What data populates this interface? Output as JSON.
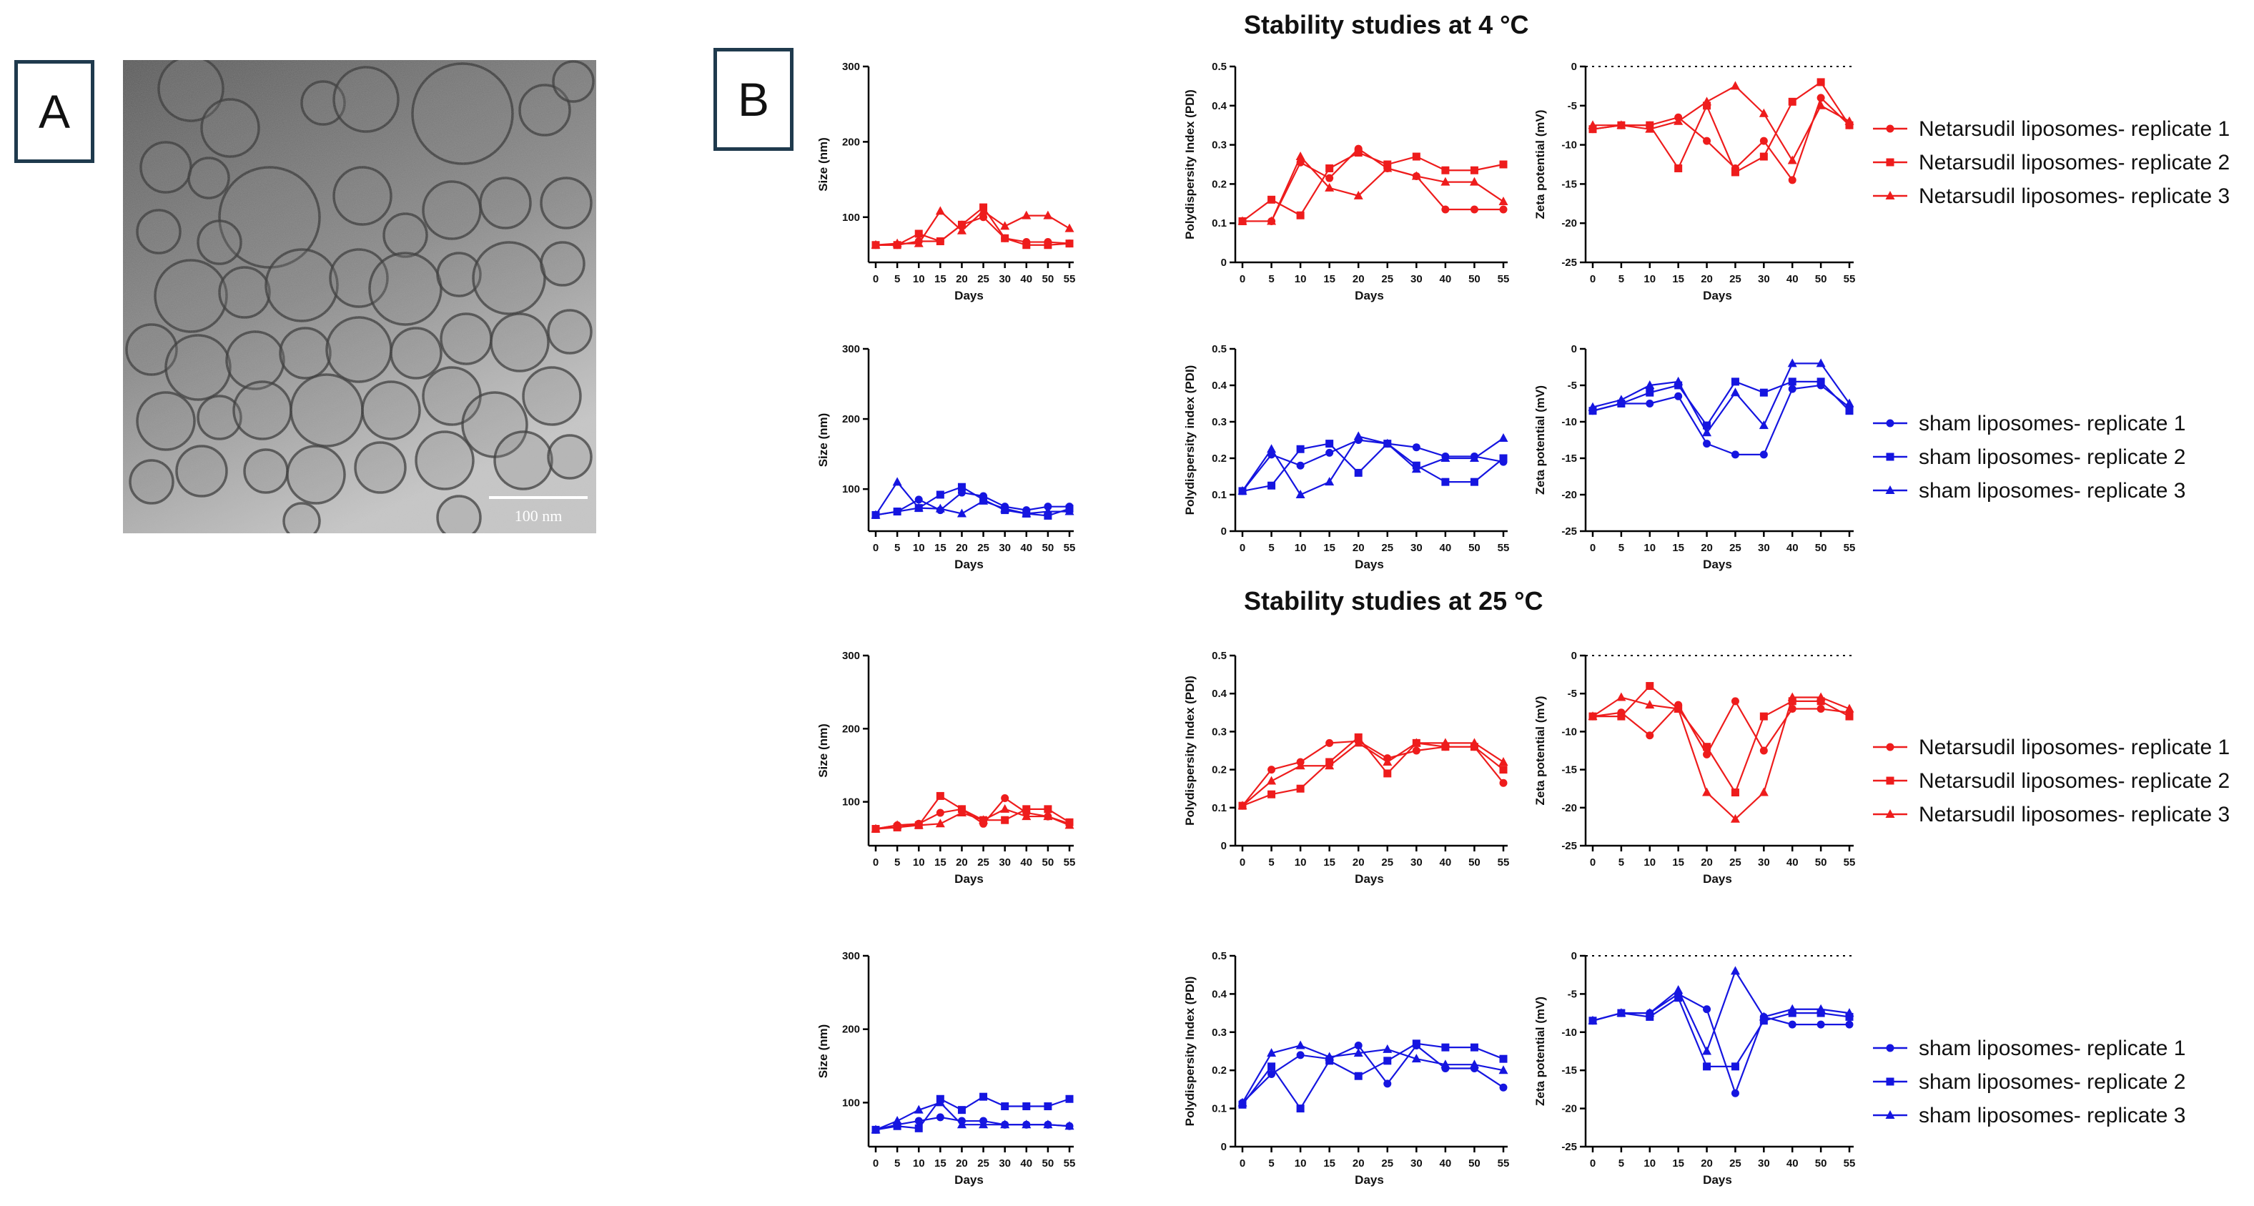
{
  "panel_labels": {
    "a": "A",
    "b": "B"
  },
  "micrograph": {
    "scale_bar_label": "100 nm"
  },
  "sections": [
    {
      "title": "Stability studies at 4 °C"
    },
    {
      "title": "Stability studies at 25 °C"
    }
  ],
  "colors": {
    "red": "#ee1c1c",
    "blue": "#1515e0"
  },
  "legends": [
    {
      "row": 0,
      "color": "red",
      "entries": [
        {
          "label": "Netarsudil liposomes- replicate 1",
          "marker": "circle"
        },
        {
          "label": "Netarsudil liposomes- replicate 2",
          "marker": "square"
        },
        {
          "label": "Netarsudil liposomes- replicate 3",
          "marker": "triangle"
        }
      ]
    },
    {
      "row": 1,
      "color": "blue",
      "entries": [
        {
          "label": "sham liposomes- replicate 1",
          "marker": "circle"
        },
        {
          "label": "sham liposomes- replicate 2",
          "marker": "square"
        },
        {
          "label": "sham liposomes- replicate 3",
          "marker": "triangle"
        }
      ]
    },
    {
      "row": 2,
      "color": "red",
      "entries": [
        {
          "label": "Netarsudil liposomes- replicate 1",
          "marker": "circle"
        },
        {
          "label": "Netarsudil liposomes- replicate 2",
          "marker": "square"
        },
        {
          "label": "Netarsudil liposomes- replicate 3",
          "marker": "triangle"
        }
      ]
    },
    {
      "row": 3,
      "color": "blue",
      "entries": [
        {
          "label": "sham liposomes- replicate 1",
          "marker": "circle"
        },
        {
          "label": "sham liposomes- replicate 2",
          "marker": "square"
        },
        {
          "label": "sham liposomes- replicate 3",
          "marker": "triangle"
        }
      ]
    }
  ],
  "chart_data": [
    {
      "type": "line",
      "row": 0,
      "col": 0,
      "color": "red",
      "ylabel": "Size (nm)",
      "xlabel": "Days",
      "x": [
        0,
        5,
        10,
        15,
        20,
        25,
        30,
        40,
        50,
        55
      ],
      "ylim": [
        40,
        300
      ],
      "yticks": [
        100,
        200,
        300
      ],
      "xticks": [
        0,
        5,
        10,
        15,
        20,
        25,
        30,
        40,
        50,
        55
      ],
      "series": [
        {
          "marker": "circle",
          "values": [
            63,
            63,
            68,
            68,
            90,
            100,
            72,
            67,
            67,
            65
          ]
        },
        {
          "marker": "square",
          "values": [
            63,
            63,
            78,
            68,
            90,
            113,
            72,
            63,
            63,
            65
          ]
        },
        {
          "marker": "triangle",
          "values": [
            63,
            65,
            65,
            108,
            82,
            108,
            88,
            102,
            102,
            85
          ]
        }
      ]
    },
    {
      "type": "line",
      "row": 0,
      "col": 1,
      "color": "red",
      "ylabel": "Polydispersity Index (PDI)",
      "xlabel": "Days",
      "x": [
        0,
        5,
        10,
        15,
        20,
        25,
        30,
        40,
        50,
        55
      ],
      "ylim": [
        0,
        0.5
      ],
      "yticks": [
        0,
        0.1,
        0.2,
        0.3,
        0.4,
        0.5
      ],
      "xticks": [
        0,
        5,
        10,
        15,
        20,
        25,
        30,
        40,
        50,
        55
      ],
      "series": [
        {
          "marker": "circle",
          "values": [
            0.105,
            0.105,
            0.255,
            0.215,
            0.29,
            0.24,
            0.22,
            0.135,
            0.135,
            0.135
          ]
        },
        {
          "marker": "square",
          "values": [
            0.105,
            0.16,
            0.12,
            0.24,
            0.28,
            0.25,
            0.27,
            0.235,
            0.235,
            0.25
          ]
        },
        {
          "marker": "triangle",
          "values": [
            0.105,
            0.105,
            0.27,
            0.19,
            0.17,
            0.24,
            0.22,
            0.205,
            0.205,
            0.155
          ]
        }
      ]
    },
    {
      "type": "line",
      "row": 0,
      "col": 2,
      "color": "red",
      "ylabel": "Zeta potential (mV)",
      "xlabel": "Days",
      "x": [
        0,
        5,
        10,
        15,
        20,
        25,
        30,
        40,
        50,
        55
      ],
      "ylim": [
        -25,
        0
      ],
      "yticks": [
        0,
        -5,
        -10,
        -15,
        -20,
        -25
      ],
      "xticks": [
        0,
        5,
        10,
        15,
        20,
        25,
        30,
        40,
        50,
        55
      ],
      "zero_line": true,
      "series": [
        {
          "marker": "circle",
          "values": [
            -8,
            -7.5,
            -7.5,
            -6.5,
            -9.5,
            -13,
            -9.5,
            -14.5,
            -4,
            -7.5
          ]
        },
        {
          "marker": "square",
          "values": [
            -8,
            -7.5,
            -7.5,
            -13,
            -5,
            -13.5,
            -11.5,
            -4.5,
            -2,
            -7.5
          ]
        },
        {
          "marker": "triangle",
          "values": [
            -7.5,
            -7.5,
            -8,
            -7,
            -4.5,
            -2.5,
            -6,
            -12,
            -5,
            -7
          ]
        }
      ]
    },
    {
      "type": "line",
      "row": 1,
      "col": 0,
      "color": "blue",
      "ylabel": "Size (nm)",
      "xlabel": "Days",
      "x": [
        0,
        5,
        10,
        15,
        20,
        25,
        30,
        40,
        50,
        55
      ],
      "ylim": [
        40,
        300
      ],
      "yticks": [
        100,
        200,
        300
      ],
      "xticks": [
        0,
        5,
        10,
        15,
        20,
        25,
        30,
        40,
        50,
        55
      ],
      "series": [
        {
          "marker": "circle",
          "values": [
            63,
            68,
            85,
            70,
            95,
            90,
            75,
            70,
            75,
            75
          ]
        },
        {
          "marker": "square",
          "values": [
            63,
            68,
            73,
            92,
            103,
            85,
            70,
            65,
            62,
            72
          ]
        },
        {
          "marker": "triangle",
          "values": [
            63,
            110,
            73,
            72,
            65,
            83,
            72,
            65,
            68,
            68
          ]
        }
      ]
    },
    {
      "type": "line",
      "row": 1,
      "col": 1,
      "color": "blue",
      "ylabel": "Polydispersity index (PDI)",
      "xlabel": "Days",
      "x": [
        0,
        5,
        10,
        15,
        20,
        25,
        30,
        40,
        50,
        55
      ],
      "ylim": [
        0,
        0.5
      ],
      "yticks": [
        0,
        0.1,
        0.2,
        0.3,
        0.4,
        0.5
      ],
      "xticks": [
        0,
        5,
        10,
        15,
        20,
        25,
        30,
        40,
        50,
        55
      ],
      "series": [
        {
          "marker": "circle",
          "values": [
            0.11,
            0.21,
            0.18,
            0.215,
            0.25,
            0.24,
            0.23,
            0.205,
            0.205,
            0.19
          ]
        },
        {
          "marker": "square",
          "values": [
            0.11,
            0.125,
            0.225,
            0.24,
            0.16,
            0.24,
            0.18,
            0.135,
            0.135,
            0.2
          ]
        },
        {
          "marker": "triangle",
          "values": [
            0.11,
            0.225,
            0.1,
            0.135,
            0.26,
            0.24,
            0.17,
            0.2,
            0.2,
            0.255
          ]
        }
      ]
    },
    {
      "type": "line",
      "row": 1,
      "col": 2,
      "color": "blue",
      "ylabel": "Zeta potential (mV)",
      "xlabel": "Days",
      "x": [
        0,
        5,
        10,
        15,
        20,
        25,
        30,
        40,
        50,
        55
      ],
      "ylim": [
        -25,
        0
      ],
      "yticks": [
        0,
        -5,
        -10,
        -15,
        -20,
        -25
      ],
      "xticks": [
        0,
        5,
        10,
        15,
        20,
        25,
        30,
        40,
        50,
        55
      ],
      "series": [
        {
          "marker": "circle",
          "values": [
            -8.5,
            -7.5,
            -7.5,
            -6.5,
            -13,
            -14.5,
            -14.5,
            -5.5,
            -5,
            -8
          ]
        },
        {
          "marker": "square",
          "values": [
            -8.5,
            -7.5,
            -6,
            -5,
            -10.5,
            -4.5,
            -6,
            -4.5,
            -4.5,
            -8.5
          ]
        },
        {
          "marker": "triangle",
          "values": [
            -8,
            -7,
            -5,
            -4.5,
            -11.5,
            -6,
            -10.5,
            -2,
            -2,
            -7.5
          ]
        }
      ]
    },
    {
      "type": "line",
      "row": 2,
      "col": 0,
      "color": "red",
      "ylabel": "Size (nm)",
      "xlabel": "Days",
      "x": [
        0,
        5,
        10,
        15,
        20,
        25,
        30,
        40,
        50,
        55
      ],
      "ylim": [
        40,
        300
      ],
      "yticks": [
        100,
        200,
        300
      ],
      "xticks": [
        0,
        5,
        10,
        15,
        20,
        25,
        30,
        40,
        50,
        55
      ],
      "series": [
        {
          "marker": "circle",
          "values": [
            63,
            68,
            70,
            85,
            90,
            70,
            105,
            85,
            80,
            70
          ]
        },
        {
          "marker": "square",
          "values": [
            63,
            65,
            68,
            108,
            90,
            75,
            75,
            90,
            90,
            72
          ]
        },
        {
          "marker": "triangle",
          "values": [
            63,
            68,
            68,
            70,
            85,
            75,
            90,
            80,
            80,
            68
          ]
        }
      ]
    },
    {
      "type": "line",
      "row": 2,
      "col": 1,
      "color": "red",
      "ylabel": "Polydispersity Index (PDI)",
      "xlabel": "Days",
      "x": [
        0,
        5,
        10,
        15,
        20,
        25,
        30,
        40,
        50,
        55
      ],
      "ylim": [
        0,
        0.5
      ],
      "yticks": [
        0,
        0.1,
        0.2,
        0.3,
        0.4,
        0.5
      ],
      "xticks": [
        0,
        5,
        10,
        15,
        20,
        25,
        30,
        40,
        50,
        55
      ],
      "series": [
        {
          "marker": "circle",
          "values": [
            0.105,
            0.2,
            0.22,
            0.27,
            0.275,
            0.23,
            0.25,
            0.26,
            0.26,
            0.165
          ]
        },
        {
          "marker": "square",
          "values": [
            0.105,
            0.135,
            0.15,
            0.22,
            0.285,
            0.19,
            0.27,
            0.26,
            0.26,
            0.2
          ]
        },
        {
          "marker": "triangle",
          "values": [
            0.105,
            0.17,
            0.21,
            0.21,
            0.27,
            0.22,
            0.27,
            0.27,
            0.27,
            0.22
          ]
        }
      ]
    },
    {
      "type": "line",
      "row": 2,
      "col": 2,
      "color": "red",
      "ylabel": "Zeta potential (mV)",
      "xlabel": "Days",
      "x": [
        0,
        5,
        10,
        15,
        20,
        25,
        30,
        40,
        50,
        55
      ],
      "ylim": [
        -25,
        0
      ],
      "yticks": [
        0,
        -5,
        -10,
        -15,
        -20,
        -25
      ],
      "xticks": [
        0,
        5,
        10,
        15,
        20,
        25,
        30,
        40,
        50,
        55
      ],
      "zero_line": true,
      "series": [
        {
          "marker": "circle",
          "values": [
            -8,
            -7.5,
            -10.5,
            -6.5,
            -13,
            -6,
            -12.5,
            -7,
            -7,
            -7.5
          ]
        },
        {
          "marker": "square",
          "values": [
            -8,
            -8,
            -4,
            -7,
            -12,
            -18,
            -8,
            -6,
            -6,
            -8
          ]
        },
        {
          "marker": "triangle",
          "values": [
            -8,
            -5.5,
            -6.5,
            -7,
            -18,
            -21.5,
            -18,
            -5.5,
            -5.5,
            -7
          ]
        }
      ]
    },
    {
      "type": "line",
      "row": 3,
      "col": 0,
      "color": "blue",
      "ylabel": "Size (nm)",
      "xlabel": "Days",
      "x": [
        0,
        5,
        10,
        15,
        20,
        25,
        30,
        40,
        50,
        55
      ],
      "ylim": [
        40,
        300
      ],
      "yticks": [
        100,
        200,
        300
      ],
      "xticks": [
        0,
        5,
        10,
        15,
        20,
        25,
        30,
        40,
        50,
        55
      ],
      "series": [
        {
          "marker": "circle",
          "values": [
            63,
            70,
            75,
            80,
            75,
            75,
            70,
            70,
            70,
            68
          ]
        },
        {
          "marker": "square",
          "values": [
            63,
            68,
            65,
            105,
            90,
            108,
            95,
            95,
            95,
            105
          ]
        },
        {
          "marker": "triangle",
          "values": [
            63,
            75,
            90,
            100,
            70,
            70,
            70,
            70,
            70,
            68
          ]
        }
      ]
    },
    {
      "type": "line",
      "row": 3,
      "col": 1,
      "color": "blue",
      "ylabel": "Polydispersity Index (PDI)",
      "xlabel": "Days",
      "x": [
        0,
        5,
        10,
        15,
        20,
        25,
        30,
        40,
        50,
        55
      ],
      "ylim": [
        0,
        0.5
      ],
      "yticks": [
        0,
        0.1,
        0.2,
        0.3,
        0.4,
        0.5
      ],
      "xticks": [
        0,
        5,
        10,
        15,
        20,
        25,
        30,
        40,
        50,
        55
      ],
      "series": [
        {
          "marker": "circle",
          "values": [
            0.115,
            0.19,
            0.24,
            0.23,
            0.265,
            0.165,
            0.265,
            0.205,
            0.205,
            0.155
          ]
        },
        {
          "marker": "square",
          "values": [
            0.11,
            0.21,
            0.1,
            0.225,
            0.185,
            0.225,
            0.27,
            0.26,
            0.26,
            0.23
          ]
        },
        {
          "marker": "triangle",
          "values": [
            0.115,
            0.245,
            0.265,
            0.235,
            0.245,
            0.255,
            0.23,
            0.215,
            0.215,
            0.2
          ]
        }
      ]
    },
    {
      "type": "line",
      "row": 3,
      "col": 2,
      "color": "blue",
      "ylabel": "Zeta potential (mV)",
      "xlabel": "Days",
      "x": [
        0,
        5,
        10,
        15,
        20,
        25,
        30,
        40,
        50,
        55
      ],
      "ylim": [
        -25,
        0
      ],
      "yticks": [
        0,
        -5,
        -10,
        -15,
        -20,
        -25
      ],
      "xticks": [
        0,
        5,
        10,
        15,
        20,
        25,
        30,
        40,
        50,
        55
      ],
      "zero_line": true,
      "series": [
        {
          "marker": "circle",
          "values": [
            -8.5,
            -7.5,
            -7.5,
            -5,
            -7,
            -18,
            -8,
            -9,
            -9,
            -9
          ]
        },
        {
          "marker": "square",
          "values": [
            -8.5,
            -7.5,
            -8,
            -5.5,
            -14.5,
            -14.5,
            -8.5,
            -7.5,
            -7.5,
            -8
          ]
        },
        {
          "marker": "triangle",
          "values": [
            -8.5,
            -7.5,
            -7.5,
            -4.5,
            -12.5,
            -2,
            -8,
            -7,
            -7,
            -7.5
          ]
        }
      ]
    }
  ]
}
